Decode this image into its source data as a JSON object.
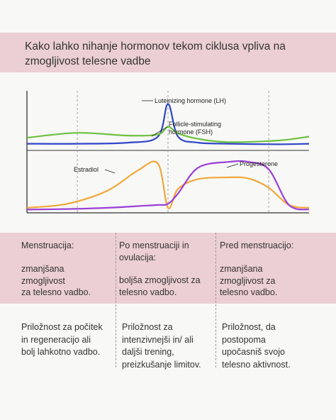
{
  "title": "Kako lahko nihanje hormonov tekom ciklusa vpliva na zmogljivost telesne vadbe",
  "colors": {
    "LH": "#2f45c8",
    "FSH": "#6cc23c",
    "Estradiol": "#f0a838",
    "Progesterone": "#9b3fd6",
    "band": "#eccfd2"
  },
  "chart_data": [
    {
      "type": "line",
      "panel": "top",
      "x": [
        0,
        5,
        10,
        13,
        14,
        15,
        17,
        20,
        25,
        28
      ],
      "series": [
        {
          "name": "Luteinizing hormone (LH)",
          "values": [
            7,
            7,
            9,
            20,
            80,
            20,
            9,
            7,
            6,
            7
          ]
        },
        {
          "name": "Follicle-stimulating hormone (FSH)",
          "values": [
            18,
            27,
            22,
            24,
            38,
            26,
            16,
            10,
            13,
            20
          ]
        }
      ],
      "annotations": [
        "Luteinizing hormone (LH)",
        "Follicle-stimulating hormone (FSH)"
      ],
      "grid": "dashed vertical lines",
      "ylim": [
        0,
        100
      ]
    },
    {
      "type": "line",
      "panel": "bottom",
      "x": [
        0,
        4,
        8,
        11,
        13,
        14,
        15,
        17,
        20,
        22,
        24,
        26,
        28
      ],
      "series": [
        {
          "name": "Estradiol",
          "values": [
            5,
            12,
            35,
            70,
            82,
            5,
            38,
            55,
            58,
            56,
            40,
            10,
            5
          ]
        },
        {
          "name": "Progesterone",
          "values": [
            2,
            3,
            5,
            8,
            10,
            12,
            30,
            75,
            85,
            85,
            72,
            10,
            2
          ]
        }
      ],
      "annotations": [
        "Estradiol",
        "Progesterone"
      ],
      "grid": "dashed vertical lines",
      "ylim": [
        0,
        100
      ]
    }
  ],
  "columns": [
    {
      "phase": "Menstruacija:",
      "effect": "zmanjšana\nzmogljivost\nza telesno vadbo.",
      "opportunity": "Priložnost za počitek\nin regeneracijo ali\nbolj lahkotno vadbo."
    },
    {
      "phase": "Po menstruaciji in\novulacija:",
      "effect": "boljša zmogljivost za\ntelesno vadbo.",
      "opportunity": "Priložnost za\nintenzivnejši in/ ali\ndaljši trening,\npreizkušanje limitov."
    },
    {
      "phase": "Pred menstruacijo:",
      "effect": "zmanjšana\nzmogljivost za\ntelesno vadbo.",
      "opportunity": "Priložnost, da\npostopoma\nupočasniš svojo\ntelesno aktivnost."
    }
  ]
}
